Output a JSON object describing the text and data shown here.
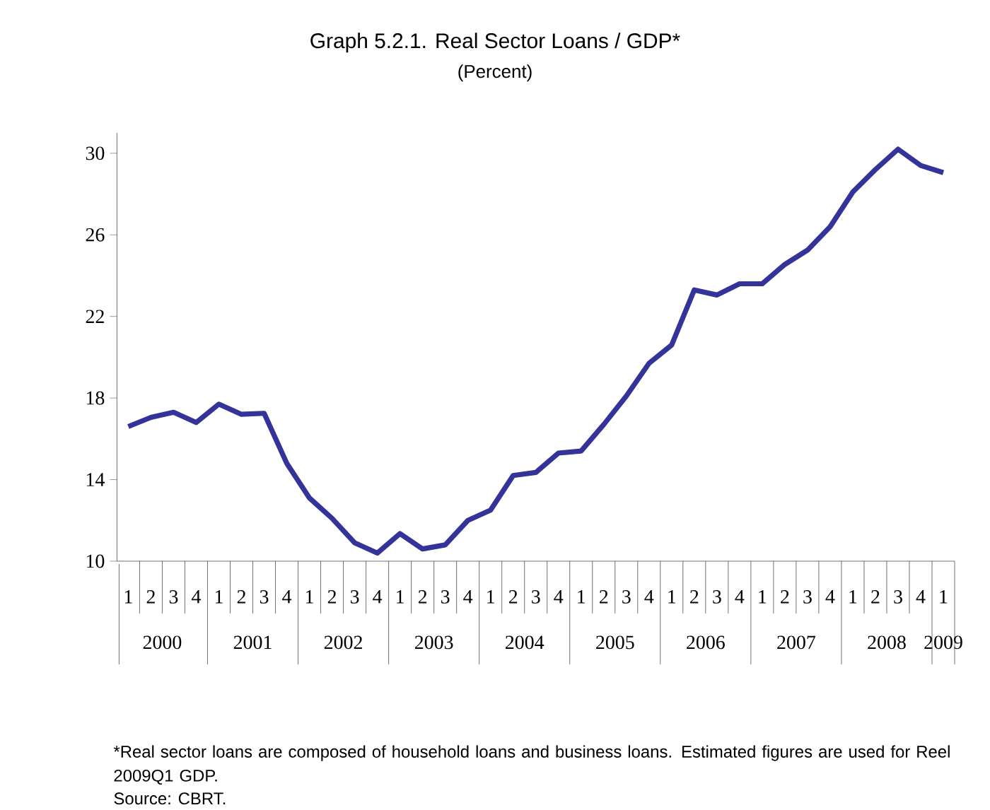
{
  "chart_data": {
    "type": "line",
    "title": "Graph 5.2.1. Real Sector Loans / GDP*",
    "subtitle": "(Percent)",
    "categories": [
      "1",
      "2",
      "3",
      "4",
      "1",
      "2",
      "3",
      "4",
      "1",
      "2",
      "3",
      "4",
      "1",
      "2",
      "3",
      "4",
      "1",
      "2",
      "3",
      "4",
      "1",
      "2",
      "3",
      "4",
      "1",
      "2",
      "3",
      "4",
      "1",
      "2",
      "3",
      "4",
      "1",
      "2",
      "3",
      "4",
      "1"
    ],
    "values": [
      16.6,
      17.05,
      17.3,
      16.8,
      17.7,
      17.2,
      17.25,
      14.8,
      13.1,
      12.1,
      10.9,
      10.4,
      11.35,
      10.6,
      10.8,
      12.0,
      12.5,
      14.2,
      14.35,
      15.3,
      15.4,
      16.7,
      18.1,
      19.7,
      20.6,
      23.3,
      23.05,
      23.6,
      23.6,
      24.55,
      25.25,
      26.4,
      28.1,
      29.2,
      30.2,
      29.4,
      29.05
    ],
    "color": "#333399",
    "ylim": [
      10,
      31
    ],
    "yticks": [
      10,
      14,
      18,
      22,
      26,
      30
    ],
    "marker": "none",
    "line_style": "solid",
    "annotations": [
      "2000",
      "2001",
      "2002",
      "2003",
      "2004",
      "2005",
      "2006",
      "2007",
      "2008",
      "2009",
      "*Real sector loans are composed of household loans and business loans. Estimated figures are used for Reel 2009Q1 GDP.",
      "Source: CBRT."
    ]
  }
}
